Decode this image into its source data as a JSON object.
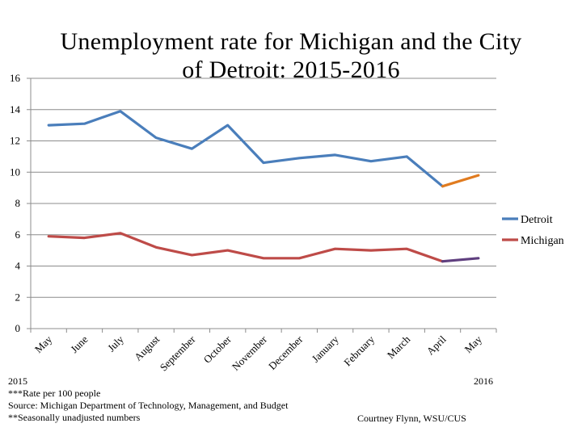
{
  "chart_data": {
    "type": "line",
    "title_line1": "Unemployment rate for Michigan and the City",
    "title_line2": "of Detroit: 2015-2016",
    "categories": [
      "May",
      "June",
      "July",
      "August",
      "September",
      "October",
      "November",
      "December",
      "January",
      "February",
      "March",
      "April",
      "May"
    ],
    "ylim": [
      0,
      16
    ],
    "yticks": [
      0,
      2,
      4,
      6,
      8,
      10,
      12,
      14,
      16
    ],
    "grid": true,
    "legend_position": "right",
    "series": [
      {
        "name": "Detroit",
        "color": "#4a7ebb",
        "final_segment_color": "#e07b1f",
        "values": [
          13.0,
          13.1,
          13.9,
          12.2,
          11.5,
          13.0,
          10.6,
          10.9,
          11.1,
          10.7,
          11.0,
          9.1,
          9.8
        ]
      },
      {
        "name": "Michigan",
        "color": "#be4b48",
        "final_segment_color": "#5f3f7f",
        "values": [
          5.9,
          5.8,
          6.1,
          5.2,
          4.7,
          5.0,
          4.5,
          4.5,
          5.1,
          5.0,
          5.1,
          4.3,
          4.5
        ]
      }
    ]
  },
  "footer": {
    "year_start": "2015",
    "year_end": "2016",
    "note_rate": "***Rate per 100 people",
    "note_source": "Source: Michigan Department of Technology, Management, and Budget",
    "note_seasonal": "**Seasonally unadjusted numbers",
    "credit": "Courtney Flynn, WSU/CUS"
  }
}
